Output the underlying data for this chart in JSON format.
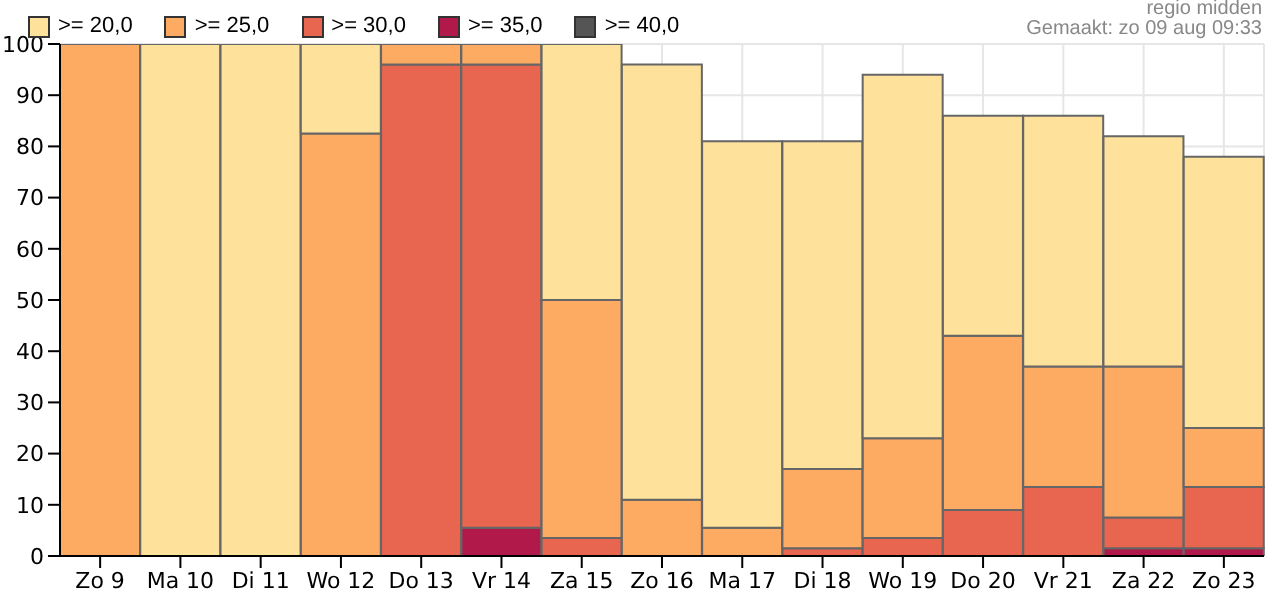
{
  "chart_data": {
    "type": "bar",
    "stacked": true,
    "categories": [
      "Zo 9",
      "Ma 10",
      "Di 11",
      "Wo 12",
      "Do 13",
      "Vr 14",
      "Za 15",
      "Zo 16",
      "Ma 17",
      "Di 18",
      "Wo 19",
      "Do 20",
      "Vr 21",
      "Za 22",
      "Zo 23"
    ],
    "series": [
      {
        "name": ">= 40,0",
        "color": "#555555",
        "values": [
          0,
          0,
          0,
          0,
          0,
          0,
          0,
          0,
          0,
          0,
          0,
          0,
          0,
          0,
          0
        ]
      },
      {
        "name": ">= 35,0",
        "color": "#b0194a",
        "values": [
          0,
          0,
          0,
          0,
          0,
          5.5,
          0,
          0,
          0,
          0,
          0,
          0,
          0,
          1.5,
          1.5
        ]
      },
      {
        "name": ">= 30,0",
        "color": "#e8654f",
        "values": [
          0,
          0,
          0,
          0,
          96,
          90.5,
          3.5,
          0,
          0,
          1.5,
          3.5,
          9,
          13.5,
          6,
          12
        ]
      },
      {
        "name": ">= 25,0",
        "color": "#fdaa63",
        "values": [
          100,
          0,
          0,
          82.5,
          4,
          4,
          46.5,
          11,
          5.5,
          15.5,
          19.5,
          34,
          23.5,
          29.5,
          11.5
        ]
      },
      {
        "name": ">= 20,0",
        "color": "#fee29b",
        "values": [
          0,
          100,
          100,
          17.5,
          0,
          0,
          50,
          85,
          75.5,
          64,
          71,
          43,
          49,
          45,
          53
        ]
      }
    ],
    "ylim": [
      0,
      100
    ],
    "yticks": [
      0,
      10,
      20,
      30,
      40,
      50,
      60,
      70,
      80,
      90,
      100
    ],
    "grid": true,
    "legend": "top left",
    "annotations": [
      "regio midden",
      "Gemaakt: zo 09 aug 09:33"
    ]
  }
}
